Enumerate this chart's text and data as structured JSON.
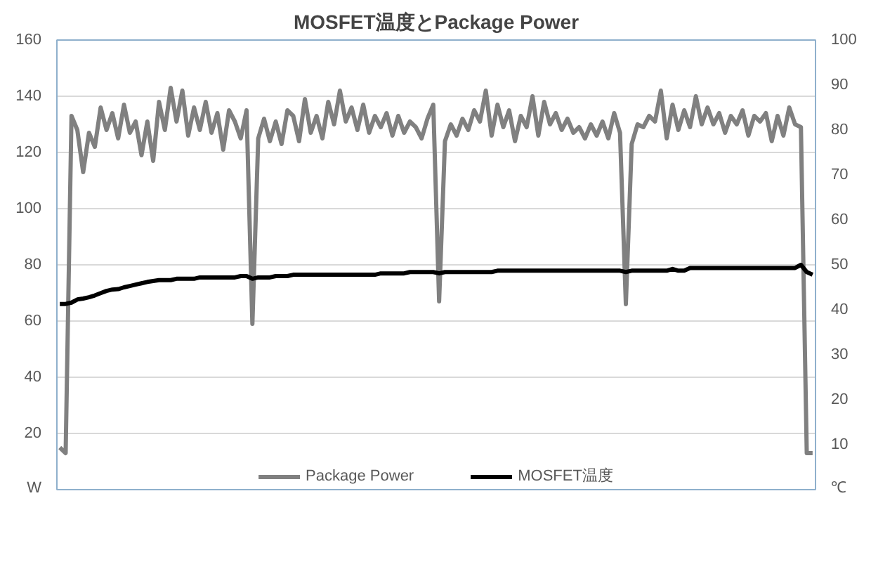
{
  "chart_data": {
    "type": "line",
    "title": "MOSFET温度とPackage Power",
    "categories": [
      null,
      null,
      null,
      null,
      null,
      null,
      null,
      null,
      null,
      null,
      null,
      null,
      null,
      null,
      null,
      null,
      null,
      null,
      null,
      null,
      null,
      null,
      null,
      null,
      null,
      null,
      null,
      null,
      null,
      null,
      null,
      null,
      null,
      null,
      null,
      null,
      null,
      null,
      null,
      null,
      null,
      null,
      null,
      null,
      null,
      null,
      null,
      null,
      null,
      null,
      null,
      null,
      null,
      null,
      null,
      null,
      null,
      null,
      null,
      null,
      null,
      null,
      null,
      null,
      null,
      null,
      null,
      null,
      null,
      null,
      null,
      null,
      null,
      null,
      null,
      null,
      null,
      null,
      null,
      null,
      null,
      null,
      null,
      null,
      null,
      null,
      null,
      null,
      null,
      null,
      null,
      null,
      null,
      null,
      null,
      null,
      null,
      null,
      null,
      null,
      null,
      null,
      null,
      null,
      null,
      null,
      null,
      null,
      null,
      null,
      null,
      null,
      null,
      null,
      null,
      null,
      null,
      null,
      null,
      null,
      null,
      null,
      null,
      null,
      null,
      null,
      null,
      null,
      null,
      null
    ],
    "series": [
      {
        "name": "Package Power",
        "color": "#808080",
        "values": [
          15,
          13,
          133,
          128,
          113,
          127,
          122,
          136,
          128,
          134,
          125,
          137,
          127,
          131,
          119,
          131,
          117,
          138,
          128,
          143,
          131,
          142,
          126,
          136,
          128,
          138,
          127,
          134,
          121,
          135,
          131,
          125,
          135,
          59,
          125,
          132,
          124,
          131,
          123,
          135,
          133,
          124,
          139,
          127,
          133,
          125,
          138,
          130,
          142,
          131,
          136,
          128,
          137,
          127,
          133,
          129,
          134,
          126,
          133,
          127,
          131,
          129,
          125,
          132,
          137,
          67,
          124,
          130,
          126,
          132,
          128,
          135,
          131,
          142,
          126,
          137,
          129,
          135,
          124,
          133,
          129,
          140,
          126,
          138,
          130,
          134,
          128,
          132,
          127,
          129,
          125,
          130,
          126,
          131,
          125,
          134,
          127,
          66,
          123,
          130,
          129,
          133,
          131,
          142,
          125,
          137,
          128,
          135,
          129,
          140,
          130,
          136,
          130,
          134,
          127,
          133,
          130,
          135,
          126,
          133,
          131,
          134,
          124,
          133,
          126,
          136,
          130,
          129,
          13,
          13
        ]
      },
      {
        "name": "MOSFET温度",
        "color": "#000000",
        "axis": "y2",
        "values": [
          41.3,
          41.3,
          41.6,
          42.3,
          42.5,
          42.8,
          43.2,
          43.7,
          44.2,
          44.5,
          44.6,
          45.0,
          45.3,
          45.6,
          45.9,
          46.2,
          46.4,
          46.6,
          46.6,
          46.6,
          46.9,
          46.9,
          46.9,
          46.9,
          47.2,
          47.2,
          47.2,
          47.2,
          47.2,
          47.2,
          47.2,
          47.5,
          47.5,
          46.9,
          47.2,
          47.2,
          47.2,
          47.5,
          47.5,
          47.5,
          47.8,
          47.8,
          47.8,
          47.8,
          47.8,
          47.8,
          47.8,
          47.8,
          47.8,
          47.8,
          47.8,
          47.8,
          47.8,
          47.8,
          47.8,
          48.1,
          48.1,
          48.1,
          48.1,
          48.1,
          48.4,
          48.4,
          48.4,
          48.4,
          48.4,
          48.1,
          48.4,
          48.4,
          48.4,
          48.4,
          48.4,
          48.4,
          48.4,
          48.4,
          48.4,
          48.7,
          48.7,
          48.7,
          48.7,
          48.7,
          48.7,
          48.7,
          48.7,
          48.7,
          48.7,
          48.7,
          48.7,
          48.7,
          48.7,
          48.7,
          48.7,
          48.7,
          48.7,
          48.7,
          48.7,
          48.7,
          48.7,
          48.4,
          48.7,
          48.7,
          48.7,
          48.7,
          48.7,
          48.7,
          48.7,
          49.1,
          48.7,
          48.7,
          49.3,
          49.3,
          49.3,
          49.3,
          49.3,
          49.3,
          49.3,
          49.3,
          49.3,
          49.3,
          49.3,
          49.3,
          49.3,
          49.3,
          49.3,
          49.3,
          49.3,
          49.3,
          49.3,
          50.0,
          48.4,
          47.8
        ]
      }
    ],
    "ylim": [
      0,
      160
    ],
    "yticks": [
      {
        "value": 0,
        "label": "W"
      },
      20,
      40,
      60,
      80,
      100,
      120,
      140,
      160
    ],
    "y2lim": [
      0,
      100
    ],
    "y2ticks": [
      {
        "value": 0,
        "label": "℃"
      },
      10,
      20,
      30,
      40,
      50,
      60,
      70,
      80,
      90,
      100
    ],
    "grid": "y",
    "legend": "bottom",
    "line_style": "solid",
    "marker": "none"
  }
}
